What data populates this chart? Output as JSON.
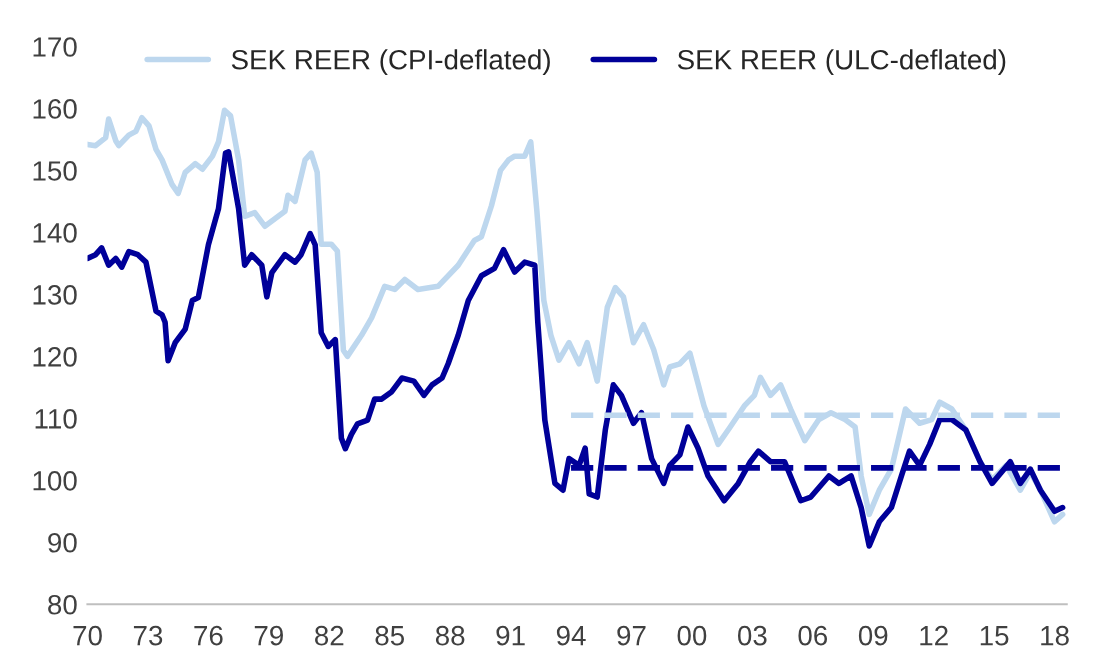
{
  "chart_data": {
    "type": "line",
    "legend": "top",
    "grid": false,
    "line_style": "solid",
    "marker": "none",
    "xlim": [
      1970,
      2018.6
    ],
    "ylim": [
      80,
      170
    ],
    "xticks": [
      {
        "value": 1970,
        "label": "70"
      },
      {
        "value": 1973,
        "label": "73"
      },
      {
        "value": 1976,
        "label": "76"
      },
      {
        "value": 1979,
        "label": "79"
      },
      {
        "value": 1982,
        "label": "82"
      },
      {
        "value": 1985,
        "label": "85"
      },
      {
        "value": 1988,
        "label": "88"
      },
      {
        "value": 1991,
        "label": "91"
      },
      {
        "value": 1994,
        "label": "94"
      },
      {
        "value": 1997,
        "label": "97"
      },
      {
        "value": 2000,
        "label": "00"
      },
      {
        "value": 2003,
        "label": "03"
      },
      {
        "value": 2006,
        "label": "06"
      },
      {
        "value": 2009,
        "label": "09"
      },
      {
        "value": 2012,
        "label": "12"
      },
      {
        "value": 2015,
        "label": "15"
      },
      {
        "value": 2018,
        "label": "18"
      }
    ],
    "yticks": [
      80,
      90,
      100,
      110,
      120,
      130,
      140,
      150,
      160,
      170
    ],
    "series": [
      {
        "name": "SEK REER (CPI-deflated)",
        "color": "#bdd7ee",
        "x": [
          1970,
          1970.4,
          1970.9,
          1971.05,
          1971.4,
          1971.55,
          1972.05,
          1972.4,
          1972.7,
          1973.05,
          1973.4,
          1973.7,
          1974.2,
          1974.5,
          1974.85,
          1975.35,
          1975.7,
          1976.2,
          1976.5,
          1976.8,
          1977.1,
          1977.5,
          1977.8,
          1978.3,
          1978.8,
          1979.3,
          1979.8,
          1979.95,
          1980.3,
          1980.8,
          1981.1,
          1981.4,
          1981.6,
          1982.1,
          1982.4,
          1982.7,
          1982.9,
          1983.6,
          1984.1,
          1984.75,
          1985.25,
          1985.75,
          1986.4,
          1987.4,
          1988.4,
          1989.2,
          1989.55,
          1990.05,
          1990.5,
          1990.9,
          1991.2,
          1991.7,
          1992.0,
          1992.3,
          1992.65,
          1993.0,
          1993.4,
          1993.9,
          1994.4,
          1994.8,
          1995.3,
          1995.8,
          1996.2,
          1996.6,
          1997.1,
          1997.6,
          1998.1,
          1998.6,
          1998.9,
          1999.4,
          1999.9,
          2000.6,
          2001.3,
          2001.9,
          2002.6,
          2003.1,
          2003.4,
          2003.9,
          2004.4,
          2004.9,
          2005.6,
          2006.3,
          2006.9,
          2007.6,
          2008.1,
          2008.4,
          2008.8,
          2009.3,
          2009.9,
          2010.6,
          2011.3,
          2011.9,
          2012.3,
          2012.9,
          2013.6,
          2014.3,
          2014.9,
          2015.6,
          2016.3,
          2016.8,
          2017.3,
          2018.0,
          2018.4
        ],
        "values": [
          154.2,
          154,
          155.3,
          158.3,
          154.8,
          154,
          155.7,
          156.3,
          158.5,
          157.2,
          153.4,
          151.7,
          147.7,
          146.3,
          149.7,
          151.1,
          150.2,
          152.3,
          154.6,
          159.7,
          158.8,
          151.7,
          142.6,
          143.2,
          141,
          142.2,
          143.4,
          146,
          145,
          151.7,
          152.8,
          149.7,
          138.1,
          138.1,
          137,
          121,
          120,
          123.4,
          126.2,
          131.3,
          130.8,
          132.4,
          130.8,
          131.3,
          134.7,
          138.7,
          139.3,
          144.3,
          150,
          151.7,
          152.3,
          152.3,
          154.6,
          143.6,
          129,
          123.4,
          119.4,
          122.2,
          118.8,
          122.2,
          116,
          127.9,
          131.1,
          129.6,
          122.2,
          125.1,
          121.1,
          115.4,
          118.3,
          118.8,
          120.5,
          112,
          105.8,
          108.6,
          112,
          113.7,
          116.6,
          113.7,
          115.4,
          111.5,
          106.4,
          109.8,
          110.9,
          109.8,
          108.6,
          100.7,
          94.5,
          98.4,
          101.8,
          111.5,
          109.2,
          109.8,
          112.6,
          111.5,
          108.1,
          103,
          100.1,
          102.4,
          98.4,
          101.3,
          98.4,
          93.3,
          94.5
        ]
      },
      {
        "name": "SEK REER (ULC-deflated)",
        "color": "#000099",
        "x": [
          1970,
          1970.4,
          1970.7,
          1971.05,
          1971.4,
          1971.7,
          1972.05,
          1972.5,
          1972.9,
          1973.4,
          1973.7,
          1973.85,
          1974.0,
          1974.35,
          1974.85,
          1975.2,
          1975.5,
          1976.0,
          1976.5,
          1976.85,
          1977.0,
          1977.5,
          1977.8,
          1978.15,
          1978.65,
          1978.9,
          1979.15,
          1979.8,
          1980.3,
          1980.6,
          1981.05,
          1981.3,
          1981.6,
          1981.95,
          1982.3,
          1982.6,
          1982.8,
          1983.1,
          1983.4,
          1983.9,
          1984.25,
          1984.6,
          1985.1,
          1985.6,
          1986.2,
          1986.7,
          1987.1,
          1987.6,
          1987.9,
          1988.4,
          1988.9,
          1989.55,
          1990.2,
          1990.65,
          1991.2,
          1991.7,
          1992.2,
          1992.35,
          1992.7,
          1993.2,
          1993.6,
          1993.9,
          1994.4,
          1994.7,
          1994.9,
          1995.3,
          1995.7,
          1996.1,
          1996.5,
          1997.1,
          1997.5,
          1998.0,
          1998.6,
          1998.9,
          1999.4,
          1999.8,
          2000.3,
          2000.8,
          2001.6,
          2002.3,
          2002.9,
          2003.3,
          2003.9,
          2004.6,
          2005.4,
          2005.9,
          2006.8,
          2007.3,
          2007.9,
          2008.4,
          2008.8,
          2009.3,
          2009.9,
          2010.4,
          2010.8,
          2011.3,
          2011.8,
          2012.3,
          2012.9,
          2013.6,
          2014.3,
          2014.9,
          2015.8,
          2016.3,
          2016.8,
          2017.3,
          2018.0,
          2018.4
        ],
        "values": [
          135.8,
          136.4,
          137.5,
          134.7,
          135.8,
          134.4,
          136.9,
          136.4,
          135.2,
          127.3,
          126.7,
          125.5,
          119.3,
          122.2,
          124.4,
          129,
          129.5,
          138,
          143.8,
          152.8,
          153,
          143.8,
          134.7,
          136.4,
          134.7,
          129.6,
          133.5,
          136.4,
          135.2,
          136.4,
          139.8,
          138,
          123.8,
          121.6,
          122.7,
          106.8,
          105.1,
          107.4,
          109.1,
          109.7,
          113.1,
          113.1,
          114.3,
          116.5,
          116,
          113.7,
          115.4,
          116.5,
          118.8,
          123.4,
          129,
          133,
          134.2,
          137.2,
          133.6,
          135.2,
          134.7,
          125.5,
          109.7,
          99.5,
          98.4,
          103.5,
          102.4,
          105.2,
          97.8,
          97.3,
          108.1,
          115.4,
          113.7,
          109.2,
          110.9,
          103.5,
          99.5,
          102.4,
          104.1,
          108.6,
          105.2,
          100.7,
          96.7,
          99.5,
          103,
          104.7,
          103,
          103,
          96.7,
          97.3,
          100.7,
          99.5,
          100.7,
          95.6,
          89.4,
          93.3,
          95.6,
          100.7,
          104.7,
          102.4,
          105.8,
          109.8,
          109.8,
          108.1,
          103,
          99.5,
          103,
          99.5,
          101.8,
          98.4,
          95,
          95.6
        ]
      },
      {
        "color": "#bdd7ee",
        "line_style": "dashed",
        "x": [
          1994,
          2018.5
        ],
        "values": [
          110.5,
          110.5
        ]
      },
      {
        "color": "#000099",
        "line_style": "dashed",
        "x": [
          1994,
          2018.5
        ],
        "values": [
          102,
          102
        ]
      }
    ]
  }
}
